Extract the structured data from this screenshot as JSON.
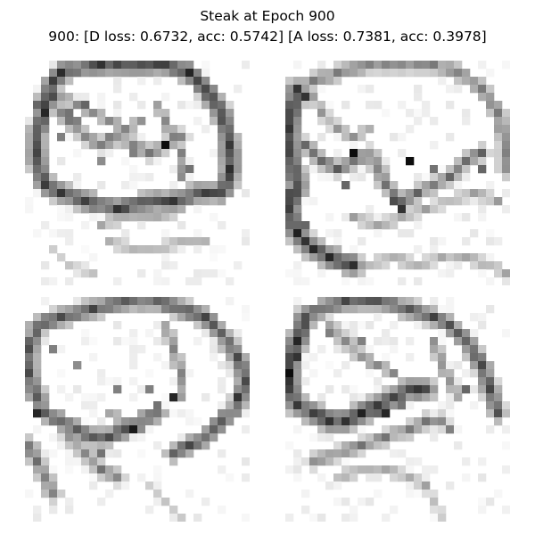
{
  "figure": {
    "title": "Steak at Epoch 900",
    "subtitle": "900: [D loss: 0.6732, acc: 0.5742]  [A loss: 0.7381, acc: 0.3978]"
  },
  "samples": [
    {
      "grid": 28,
      "strokes": [
        {
          "pts": [
            [
              3,
              2
            ],
            [
              4,
              1
            ],
            [
              8,
              0
            ],
            [
              13,
              0
            ],
            [
              17,
              0
            ],
            [
              20,
              1
            ],
            [
              22,
              3
            ],
            [
              24,
              6
            ],
            [
              25,
              10
            ],
            [
              25,
              14
            ],
            [
              24,
              16
            ]
          ],
          "w": 1.4,
          "v": 0.7
        },
        {
          "pts": [
            [
              3,
              2
            ],
            [
              2,
              5
            ],
            [
              1,
              9
            ],
            [
              1,
              12
            ],
            [
              2,
              15
            ],
            [
              4,
              16
            ],
            [
              7,
              17
            ],
            [
              11,
              18
            ],
            [
              15,
              17
            ],
            [
              18,
              17
            ],
            [
              21,
              16
            ],
            [
              24,
              16
            ]
          ],
          "w": 1.4,
          "v": 0.65
        },
        {
          "pts": [
            [
              3,
              5
            ],
            [
              5,
              7
            ],
            [
              7,
              9
            ],
            [
              9,
              10
            ],
            [
              11,
              9
            ],
            [
              13,
              10
            ],
            [
              15,
              11
            ],
            [
              17,
              10
            ],
            [
              19,
              9
            ]
          ],
          "w": 1.0,
          "v": 0.45
        },
        {
          "pts": [
            [
              4,
              4
            ],
            [
              6,
              5
            ],
            [
              8,
              6
            ],
            [
              10,
              7
            ],
            [
              12,
              8
            ],
            [
              14,
              7
            ]
          ],
          "w": 0.9,
          "v": 0.4
        },
        {
          "pts": [
            [
              16,
              5
            ],
            [
              17,
              7
            ],
            [
              18,
              9
            ],
            [
              19,
              11
            ],
            [
              19,
              14
            ]
          ],
          "w": 0.9,
          "v": 0.4
        },
        {
          "pts": [
            [
              9,
              20
            ],
            [
              12,
              19
            ],
            [
              16,
              19
            ],
            [
              19,
              18
            ]
          ],
          "w": 0.8,
          "v": 0.3
        },
        {
          "pts": [
            [
              10,
              22
            ],
            [
              13,
              23
            ],
            [
              16,
              23
            ],
            [
              19,
              22
            ],
            [
              22,
              22
            ]
          ],
          "w": 0.8,
          "v": 0.28
        },
        {
          "pts": [
            [
              3,
              23
            ],
            [
              5,
              25
            ],
            [
              8,
              26
            ]
          ],
          "w": 0.7,
          "v": 0.2
        }
      ],
      "dots": [
        [
          17,
          10,
          0.95
        ],
        [
          7,
          5,
          0.6
        ],
        [
          5,
          6,
          0.55
        ],
        [
          3,
          4,
          0.7
        ],
        [
          4,
          9,
          0.5
        ],
        [
          10,
          9,
          0.5
        ],
        [
          6,
          7,
          0.5
        ],
        [
          20,
          13,
          0.55
        ],
        [
          2,
          6,
          0.85
        ],
        [
          1,
          5,
          0.6
        ],
        [
          13,
          11,
          0.5
        ],
        [
          9,
          12,
          0.45
        ]
      ]
    },
    {
      "grid": 28,
      "strokes": [
        {
          "pts": [
            [
              1,
              3
            ],
            [
              3,
              2
            ],
            [
              6,
              1
            ],
            [
              10,
              0
            ],
            [
              14,
              0
            ],
            [
              18,
              0
            ],
            [
              21,
              1
            ],
            [
              24,
              3
            ],
            [
              26,
              6
            ],
            [
              27,
              10
            ],
            [
              27,
              13
            ]
          ],
          "w": 1.1,
          "v": 0.45
        },
        {
          "pts": [
            [
              1,
              3
            ],
            [
              0,
              7
            ],
            [
              0,
              11
            ],
            [
              1,
              15
            ],
            [
              0,
              18
            ],
            [
              1,
              21
            ],
            [
              3,
              23
            ],
            [
              5,
              24
            ],
            [
              8,
              25
            ]
          ],
          "w": 1.5,
          "v": 0.72
        },
        {
          "pts": [
            [
              2,
              10
            ],
            [
              4,
              12
            ],
            [
              6,
              13
            ],
            [
              8,
              12
            ],
            [
              10,
              11
            ],
            [
              11,
              13
            ],
            [
              12,
              15
            ],
            [
              14,
              17
            ],
            [
              16,
              16
            ],
            [
              18,
              15
            ],
            [
              20,
              14
            ],
            [
              22,
              12
            ],
            [
              24,
              11
            ]
          ],
          "w": 1.0,
          "v": 0.5
        },
        {
          "pts": [
            [
              3,
              4
            ],
            [
              4,
              6
            ],
            [
              6,
              8
            ],
            [
              8,
              9
            ],
            [
              10,
              8
            ]
          ],
          "w": 0.8,
          "v": 0.35
        },
        {
          "pts": [
            [
              8,
              19
            ],
            [
              11,
              20
            ],
            [
              14,
              19
            ],
            [
              17,
              18
            ],
            [
              20,
              17
            ],
            [
              23,
              16
            ],
            [
              26,
              17
            ]
          ],
          "w": 0.8,
          "v": 0.32
        },
        {
          "pts": [
            [
              10,
              25
            ],
            [
              13,
              24
            ],
            [
              16,
              25
            ],
            [
              19,
              24
            ],
            [
              22,
              24
            ],
            [
              25,
              25
            ],
            [
              27,
              26
            ]
          ],
          "w": 0.8,
          "v": 0.3
        }
      ],
      "dots": [
        [
          8,
          11,
          0.95
        ],
        [
          15,
          12,
          0.95
        ],
        [
          14,
          18,
          0.8
        ],
        [
          13,
          17,
          0.7
        ],
        [
          6,
          13,
          0.65
        ],
        [
          7,
          15,
          0.6
        ],
        [
          3,
          11,
          0.55
        ],
        [
          18,
          13,
          0.55
        ],
        [
          2,
          4,
          0.8
        ],
        [
          1,
          3,
          0.6
        ],
        [
          0,
          16,
          0.7
        ],
        [
          24,
          13,
          0.6
        ],
        [
          20,
          14,
          0.55
        ],
        [
          2,
          20,
          0.6
        ]
      ]
    },
    {
      "grid": 28,
      "strokes": [
        {
          "pts": [
            [
              1,
              3
            ],
            [
              4,
              2
            ],
            [
              8,
              1
            ],
            [
              12,
              0
            ],
            [
              16,
              0
            ],
            [
              19,
              1
            ],
            [
              22,
              2
            ],
            [
              24,
              4
            ],
            [
              26,
              7
            ],
            [
              27,
              10
            ],
            [
              26,
              13
            ],
            [
              24,
              15
            ],
            [
              22,
              17
            ],
            [
              20,
              18
            ],
            [
              18,
              19
            ]
          ],
          "w": 1.3,
          "v": 0.6
        },
        {
          "pts": [
            [
              1,
              3
            ],
            [
              0,
              6
            ],
            [
              0,
              9
            ],
            [
              1,
              12
            ],
            [
              2,
              14
            ],
            [
              4,
              15
            ],
            [
              6,
              16
            ],
            [
              8,
              17
            ],
            [
              10,
              17
            ],
            [
              12,
              16
            ],
            [
              14,
              15
            ],
            [
              16,
              14
            ]
          ],
          "w": 1.3,
          "v": 0.6
        },
        {
          "pts": [
            [
              0,
              18
            ],
            [
              1,
              20
            ],
            [
              2,
              22
            ],
            [
              3,
              24
            ]
          ],
          "w": 1.1,
          "v": 0.5
        },
        {
          "pts": [
            [
              5,
              17
            ],
            [
              7,
              19
            ],
            [
              9,
              21
            ],
            [
              11,
              22
            ]
          ],
          "w": 1.0,
          "v": 0.45
        },
        {
          "pts": [
            [
              17,
              3
            ],
            [
              18,
              6
            ],
            [
              19,
              9
            ],
            [
              19,
              12
            ]
          ],
          "w": 0.9,
          "v": 0.4
        },
        {
          "pts": [
            [
              10,
              14
            ],
            [
              12,
              15
            ],
            [
              14,
              16
            ]
          ],
          "w": 0.8,
          "v": 0.4
        },
        {
          "pts": [
            [
              15,
              23
            ],
            [
              17,
              25
            ],
            [
              19,
              27
            ]
          ],
          "w": 0.7,
          "v": 0.22
        }
      ],
      "dots": [
        [
          18,
          12,
          0.85
        ],
        [
          13,
          16,
          0.9
        ],
        [
          1,
          14,
          0.85
        ],
        [
          26,
          12,
          0.8
        ],
        [
          24,
          15,
          0.6
        ],
        [
          16,
          13,
          0.55
        ],
        [
          11,
          11,
          0.5
        ],
        [
          6,
          8,
          0.45
        ],
        [
          3,
          6,
          0.5
        ],
        [
          15,
          11,
          0.5
        ],
        [
          9,
          19,
          0.55
        ]
      ]
    },
    {
      "grid": 28,
      "strokes": [
        {
          "pts": [
            [
              2,
              2
            ],
            [
              4,
              1
            ],
            [
              7,
              0
            ],
            [
              11,
              0
            ],
            [
              15,
              1
            ],
            [
              18,
              2
            ],
            [
              20,
              3
            ],
            [
              22,
              5
            ],
            [
              24,
              8
            ],
            [
              25,
              11
            ],
            [
              26,
              14
            ]
          ],
          "w": 1.3,
          "v": 0.6
        },
        {
          "pts": [
            [
              2,
              2
            ],
            [
              1,
              5
            ],
            [
              0,
              8
            ],
            [
              0,
              11
            ],
            [
              1,
              13
            ],
            [
              3,
              14
            ],
            [
              5,
              15
            ],
            [
              7,
              15
            ],
            [
              9,
              14
            ],
            [
              11,
              13
            ],
            [
              13,
              12
            ],
            [
              15,
              11
            ],
            [
              17,
              11
            ]
          ],
          "w": 1.5,
          "v": 0.7
        },
        {
          "pts": [
            [
              5,
              3
            ],
            [
              7,
              5
            ],
            [
              9,
              7
            ],
            [
              11,
              8
            ],
            [
              13,
              9
            ]
          ],
          "w": 0.9,
          "v": 0.4
        },
        {
          "pts": [
            [
              18,
              5
            ],
            [
              19,
              8
            ],
            [
              20,
              10
            ],
            [
              21,
              12
            ]
          ],
          "w": 0.9,
          "v": 0.4
        },
        {
          "pts": [
            [
              3,
              20
            ],
            [
              6,
              19
            ],
            [
              9,
              18
            ],
            [
              12,
              17
            ],
            [
              15,
              16
            ],
            [
              17,
              15
            ],
            [
              19,
              15
            ]
          ],
          "w": 1.0,
          "v": 0.45
        },
        {
          "pts": [
            [
              6,
              22
            ],
            [
              9,
              21
            ],
            [
              12,
              21
            ],
            [
              15,
              22
            ],
            [
              17,
              23
            ]
          ],
          "w": 0.8,
          "v": 0.3
        },
        {
          "pts": [
            [
              17,
              23
            ],
            [
              18,
              25
            ],
            [
              19,
              27
            ]
          ],
          "w": 0.7,
          "v": 0.22
        }
      ],
      "dots": [
        [
          12,
          14,
          0.85
        ],
        [
          0,
          9,
          0.95
        ],
        [
          1,
          7,
          0.8
        ],
        [
          0,
          11,
          0.75
        ],
        [
          15,
          11,
          0.55
        ],
        [
          22,
          11,
          0.6
        ],
        [
          9,
          5,
          0.5
        ],
        [
          5,
          4,
          0.5
        ],
        [
          14,
          13,
          0.55
        ],
        [
          11,
          14,
          0.6
        ],
        [
          20,
          16,
          0.5
        ],
        [
          6,
          15,
          0.55
        ]
      ]
    }
  ]
}
